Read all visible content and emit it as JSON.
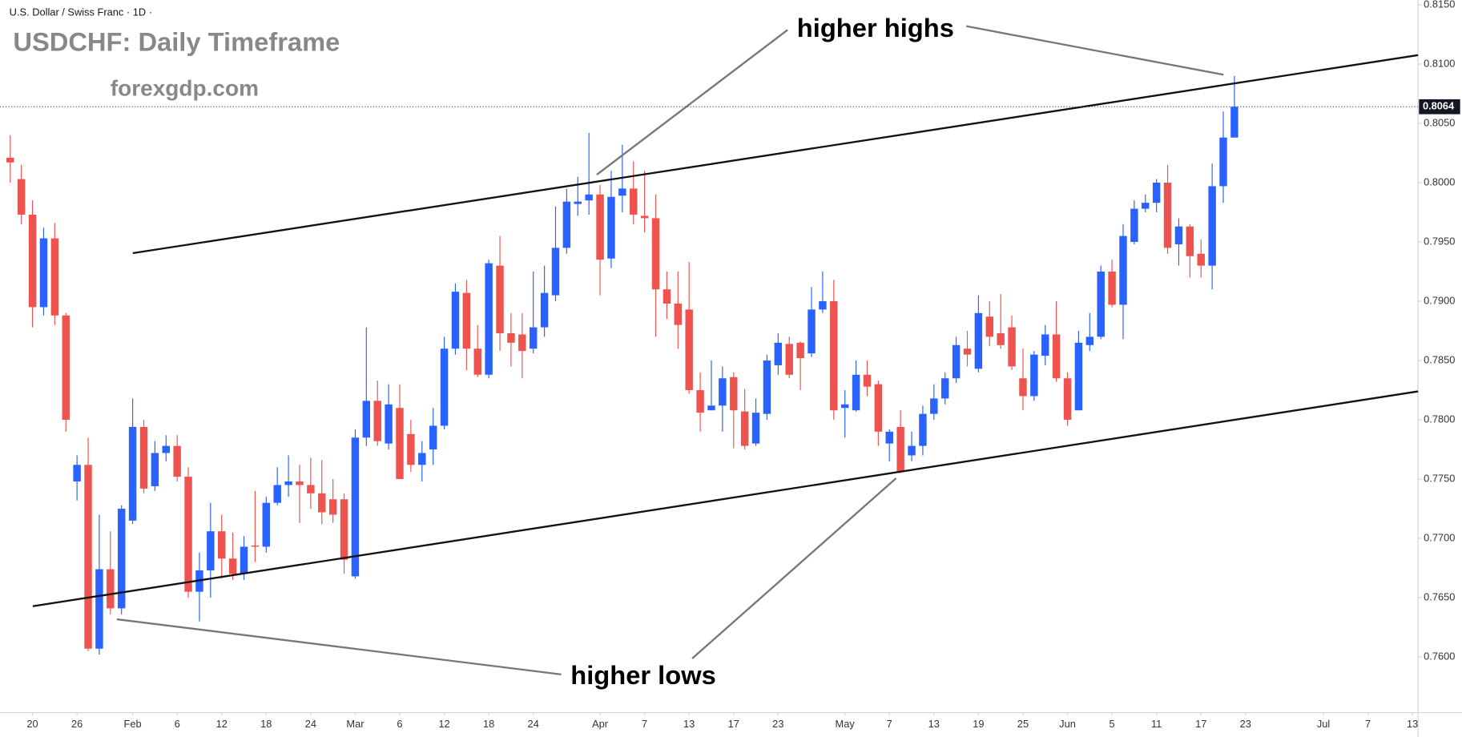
{
  "chart_data": {
    "type": "candlestick",
    "symbol_label": "U.S. Dollar / Swiss Franc · 1D ·",
    "title": "USDCHF: Daily Timeframe",
    "subtitle": "forexgdp.com",
    "annotations": [
      "higher highs",
      "higher lows"
    ],
    "up_color": "#2962ff",
    "down_color": "#ef5350",
    "x": [
      0,
      1,
      2,
      3,
      4,
      5,
      6,
      7,
      8,
      9,
      10,
      11,
      12,
      13,
      14,
      15,
      16,
      17,
      18,
      19,
      20,
      21,
      22,
      23,
      24,
      25,
      26,
      27,
      28,
      29,
      30,
      31,
      32,
      33,
      34,
      35,
      36,
      37,
      38,
      39,
      40,
      41,
      42,
      43,
      44,
      45,
      46,
      47,
      48,
      49,
      50,
      51,
      52,
      53,
      54,
      55,
      56,
      57,
      58,
      59,
      60,
      61,
      62,
      63,
      64,
      65,
      66,
      67,
      68,
      69,
      70,
      71,
      72,
      73,
      74,
      75,
      76,
      77,
      78,
      79,
      80,
      81,
      82,
      83,
      84,
      85,
      86,
      87,
      88,
      89,
      90,
      91,
      92,
      93,
      94,
      95,
      96,
      97,
      98,
      99,
      100,
      101,
      102,
      103,
      104,
      105,
      106,
      107,
      108,
      109,
      110
    ],
    "open": [
      0.8021,
      0.8003,
      0.7973,
      0.7895,
      0.7953,
      0.7888,
      0.7748,
      0.7762,
      0.7607,
      0.7674,
      0.7641,
      0.7715,
      0.7794,
      0.7744,
      0.7772,
      0.7778,
      0.7752,
      0.7655,
      0.7673,
      0.7706,
      0.7683,
      0.767,
      0.7694,
      0.7693,
      0.773,
      0.7745,
      0.7748,
      0.7745,
      0.7738,
      0.7733,
      0.7733,
      0.7668,
      0.7785,
      0.7816,
      0.778,
      0.781,
      0.7788,
      0.7762,
      0.7775,
      0.7795,
      0.786,
      0.7907,
      0.786,
      0.7838,
      0.793,
      0.7873,
      0.7872,
      0.786,
      0.7878,
      0.7905,
      0.7945,
      0.7982,
      0.7985,
      0.799,
      0.7936,
      0.7989,
      0.7995,
      0.7972,
      0.797,
      0.791,
      0.7898,
      0.7893,
      0.7825,
      0.7808,
      0.7812,
      0.7836,
      0.7807,
      0.778,
      0.7805,
      0.7846,
      0.7864,
      0.7865,
      0.7856,
      0.7893,
      0.79,
      0.781,
      0.7808,
      0.7838,
      0.783,
      0.778,
      0.7794,
      0.777,
      0.7778,
      0.7805,
      0.7818,
      0.7835,
      0.786,
      0.7843,
      0.7887,
      0.7873,
      0.7878,
      0.7835,
      0.782,
      0.7854,
      0.7872,
      0.7835,
      0.7808,
      0.7863,
      0.787,
      0.7925,
      0.7897,
      0.795,
      0.7978,
      0.7983,
      0.8,
      0.7948,
      0.7963,
      0.794,
      0.793,
      0.7997,
      0.8038
    ],
    "high": [
      0.804,
      0.8015,
      0.7985,
      0.7962,
      0.7966,
      0.789,
      0.777,
      0.7785,
      0.772,
      0.7706,
      0.7728,
      0.7818,
      0.78,
      0.7782,
      0.7787,
      0.7787,
      0.776,
      0.7688,
      0.773,
      0.772,
      0.7705,
      0.7702,
      0.774,
      0.7735,
      0.776,
      0.777,
      0.7762,
      0.7768,
      0.7766,
      0.775,
      0.7738,
      0.7792,
      0.7878,
      0.7833,
      0.783,
      0.783,
      0.78,
      0.7782,
      0.781,
      0.787,
      0.7915,
      0.7918,
      0.788,
      0.7935,
      0.7955,
      0.789,
      0.789,
      0.7925,
      0.793,
      0.798,
      0.7995,
      0.8005,
      0.8042,
      0.7998,
      0.801,
      0.8032,
      0.8018,
      0.801,
      0.799,
      0.7925,
      0.7925,
      0.7933,
      0.784,
      0.785,
      0.7845,
      0.784,
      0.7826,
      0.7818,
      0.7855,
      0.7873,
      0.787,
      0.7866,
      0.7912,
      0.7925,
      0.7918,
      0.7825,
      0.785,
      0.785,
      0.7833,
      0.7792,
      0.7808,
      0.779,
      0.7812,
      0.783,
      0.784,
      0.787,
      0.7875,
      0.7905,
      0.79,
      0.7906,
      0.7888,
      0.786,
      0.7858,
      0.788,
      0.79,
      0.784,
      0.7875,
      0.789,
      0.793,
      0.7935,
      0.7965,
      0.7985,
      0.799,
      0.8003,
      0.8015,
      0.797,
      0.7965,
      0.7952,
      0.8016,
      0.806,
      0.809
    ],
    "low": [
      0.8,
      0.7965,
      0.7878,
      0.7888,
      0.788,
      0.779,
      0.7732,
      0.7605,
      0.7602,
      0.7636,
      0.7636,
      0.7712,
      0.7738,
      0.774,
      0.7765,
      0.7748,
      0.765,
      0.763,
      0.765,
      0.7666,
      0.7665,
      0.7665,
      0.768,
      0.7688,
      0.7728,
      0.7735,
      0.7713,
      0.7725,
      0.7712,
      0.7713,
      0.767,
      0.7666,
      0.7778,
      0.7778,
      0.7775,
      0.775,
      0.7756,
      0.7748,
      0.7762,
      0.7792,
      0.7855,
      0.7842,
      0.7836,
      0.7835,
      0.7858,
      0.7845,
      0.7835,
      0.7856,
      0.787,
      0.79,
      0.794,
      0.7972,
      0.7973,
      0.7905,
      0.7928,
      0.7975,
      0.7965,
      0.7958,
      0.787,
      0.7885,
      0.786,
      0.7822,
      0.779,
      0.7808,
      0.779,
      0.7776,
      0.7775,
      0.7778,
      0.78,
      0.7838,
      0.7835,
      0.7825,
      0.7853,
      0.789,
      0.78,
      0.7785,
      0.7807,
      0.782,
      0.7778,
      0.7765,
      0.7755,
      0.7765,
      0.777,
      0.78,
      0.7813,
      0.7831,
      0.7845,
      0.784,
      0.7862,
      0.786,
      0.7842,
      0.7808,
      0.7816,
      0.7846,
      0.7832,
      0.7795,
      0.7808,
      0.7858,
      0.7868,
      0.7895,
      0.7868,
      0.7948,
      0.7975,
      0.7975,
      0.794,
      0.793,
      0.792,
      0.792,
      0.791,
      0.7983,
      0.8038
    ],
    "close": [
      0.8017,
      0.7973,
      0.7895,
      0.7953,
      0.7888,
      0.78,
      0.7762,
      0.7607,
      0.7674,
      0.7641,
      0.7725,
      0.7794,
      0.7742,
      0.7772,
      0.7778,
      0.7752,
      0.7655,
      0.7673,
      0.7706,
      0.7683,
      0.767,
      0.7693,
      0.7693,
      0.773,
      0.7745,
      0.7748,
      0.7745,
      0.7738,
      0.7722,
      0.772,
      0.7682,
      0.7785,
      0.7816,
      0.7782,
      0.7813,
      0.775,
      0.7762,
      0.7772,
      0.7795,
      0.786,
      0.7908,
      0.786,
      0.7838,
      0.7932,
      0.7873,
      0.7865,
      0.7858,
      0.7878,
      0.7907,
      0.7945,
      0.7984,
      0.7984,
      0.799,
      0.7935,
      0.7988,
      0.7995,
      0.7973,
      0.797,
      0.791,
      0.7898,
      0.788,
      0.7825,
      0.7806,
      0.7812,
      0.7835,
      0.7808,
      0.7778,
      0.7806,
      0.785,
      0.7865,
      0.7838,
      0.7852,
      0.7893,
      0.79,
      0.7808,
      0.7813,
      0.7838,
      0.7828,
      0.779,
      0.779,
      0.7756,
      0.7778,
      0.7805,
      0.7818,
      0.7835,
      0.7863,
      0.7855,
      0.789,
      0.787,
      0.7863,
      0.7845,
      0.782,
      0.7855,
      0.7872,
      0.7835,
      0.78,
      0.7865,
      0.787,
      0.7925,
      0.7897,
      0.7955,
      0.7978,
      0.7983,
      0.8,
      0.7945,
      0.7963,
      0.7938,
      0.793,
      0.7997,
      0.8038,
      0.8064
    ],
    "price_label": "0.8064",
    "xlim": [
      -0.92,
      126.5
    ],
    "xticks": [
      {
        "value": 2,
        "label": "20"
      },
      {
        "value": 6,
        "label": "26"
      },
      {
        "value": 11,
        "label": "Feb"
      },
      {
        "value": 15,
        "label": "6"
      },
      {
        "value": 19,
        "label": "12"
      },
      {
        "value": 23,
        "label": "18"
      },
      {
        "value": 27,
        "label": "24"
      },
      {
        "value": 31,
        "label": "Mar"
      },
      {
        "value": 35,
        "label": "6"
      },
      {
        "value": 39,
        "label": "12"
      },
      {
        "value": 43,
        "label": "18"
      },
      {
        "value": 47,
        "label": "24"
      },
      {
        "value": 53,
        "label": "Apr"
      },
      {
        "value": 57,
        "label": "7"
      },
      {
        "value": 61,
        "label": "13"
      },
      {
        "value": 65,
        "label": "17"
      },
      {
        "value": 69,
        "label": "23"
      },
      {
        "value": 75,
        "label": "May"
      },
      {
        "value": 79,
        "label": "7"
      },
      {
        "value": 83,
        "label": "13"
      },
      {
        "value": 87,
        "label": "19"
      },
      {
        "value": 91,
        "label": "25"
      },
      {
        "value": 95,
        "label": "Jun"
      },
      {
        "value": 99,
        "label": "5"
      },
      {
        "value": 103,
        "label": "11"
      },
      {
        "value": 107,
        "label": "17"
      },
      {
        "value": 111,
        "label": "23"
      },
      {
        "value": 118,
        "label": "Jul"
      },
      {
        "value": 122,
        "label": "7"
      },
      {
        "value": 126,
        "label": "13"
      }
    ],
    "ylim": [
      0.7553,
      0.8154
    ],
    "yticks": [
      {
        "value": 0.76,
        "label": "0.7600"
      },
      {
        "value": 0.765,
        "label": "0.7650"
      },
      {
        "value": 0.77,
        "label": "0.7700"
      },
      {
        "value": 0.775,
        "label": "0.7750"
      },
      {
        "value": 0.78,
        "label": "0.7800"
      },
      {
        "value": 0.785,
        "label": "0.7850"
      },
      {
        "value": 0.79,
        "label": "0.7900"
      },
      {
        "value": 0.795,
        "label": "0.7950"
      },
      {
        "value": 0.8,
        "label": "0.8000"
      },
      {
        "value": 0.805,
        "label": "0.8050"
      },
      {
        "value": 0.81,
        "label": "0.8100"
      },
      {
        "value": 0.815,
        "label": "0.8150"
      }
    ]
  }
}
